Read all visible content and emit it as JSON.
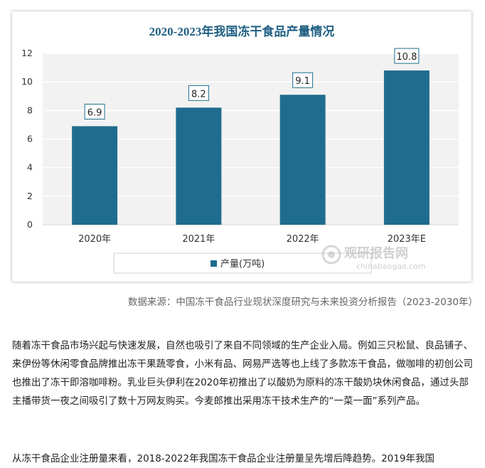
{
  "chart_data": {
    "type": "bar",
    "title": "2020-2023年我国冻干食品产量情况",
    "categories": [
      "2020年",
      "2021年",
      "2022年",
      "2023年E"
    ],
    "series": [
      {
        "name": "产量(万吨)",
        "values": [
          6.9,
          8.2,
          9.1,
          10.8
        ]
      }
    ],
    "data_labels": [
      "6.9",
      "8.2",
      "9.1",
      "10.8"
    ],
    "yticks": [
      "0",
      "2",
      "4",
      "6",
      "8",
      "10",
      "12"
    ],
    "ylim": [
      0,
      12
    ],
    "grid": true,
    "legend_position": "bottom",
    "colors": {
      "bar": "#1f6d8e",
      "title": "#1f5f82",
      "grid": "#e6e6e6",
      "plot_bg": "#f2f2f2"
    }
  },
  "watermark": {
    "brand": "观研报告网",
    "url": "chinabaogao.com"
  },
  "source": "数据来源：中国冻干食品行业现状深度研究与未来投资分析报告（2023-2030年）",
  "paragraphs": [
    "随着冻干食品市场兴起与快速发展，自然也吸引了来自不同领域的生产企业入局。例如三只松鼠、良品铺子、来伊份等休闲零食品牌推出冻干果蔬零食，小米有品、网易严选等也上线了多款冻干食品，做咖啡的初创公司也推出了冻干即溶咖啡粉。乳业巨头伊利在2020年初推出了以酸奶为原料的冻干酸奶块休闲食品，通过头部主播带货一夜之间吸引了数十万网友购买。今麦郎推出采用冻干技术生产的“一菜一面”系列产品。",
    "从冻干食品企业注册量来看，2018-2022年我国冻干食品企业注册量呈先增后降趋势。2019年我国"
  ]
}
